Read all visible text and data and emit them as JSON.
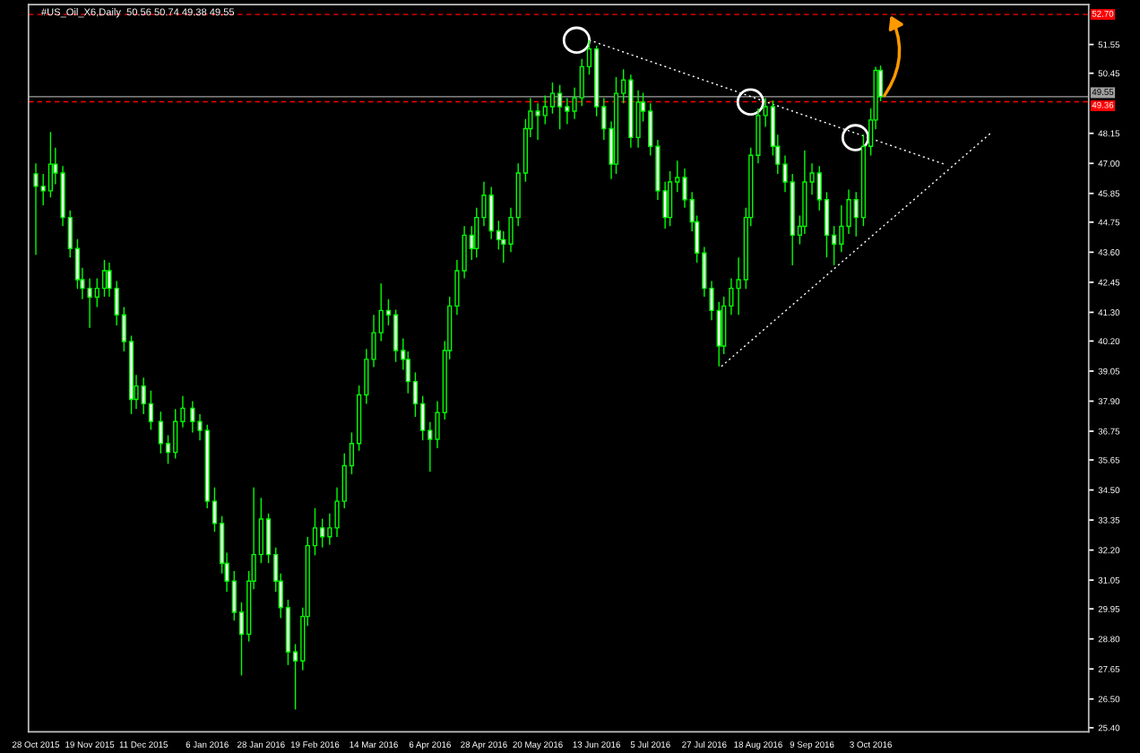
{
  "chart_data": {
    "type": "candlestick",
    "title": "#US_Oil_X6,Daily  50.56 50.74 49.38 49.55",
    "color": "#00ff00",
    "x": [
      "2015-10-28",
      "2015-10-31",
      "2015-11-03",
      "2015-11-05",
      "2015-11-08",
      "2015-11-11",
      "2015-11-14",
      "2015-11-16",
      "2015-11-19",
      "2015-11-22",
      "2015-11-25",
      "2015-11-27",
      "2015-11-30",
      "2015-12-03",
      "2015-12-06",
      "2015-12-08",
      "2015-12-11",
      "2015-12-14",
      "2015-12-18",
      "2015-12-21",
      "2015-12-24",
      "2015-12-27",
      "2015-12-31",
      "2016-01-03",
      "2016-01-06",
      "2016-01-09",
      "2016-01-12",
      "2016-01-14",
      "2016-01-17",
      "2016-01-20",
      "2016-01-23",
      "2016-01-25",
      "2016-01-28",
      "2016-01-31",
      "2016-02-03",
      "2016-02-05",
      "2016-02-08",
      "2016-02-11",
      "2016-02-14",
      "2016-02-16",
      "2016-02-19",
      "2016-02-22",
      "2016-02-25",
      "2016-02-28",
      "2016-03-02",
      "2016-03-05",
      "2016-03-08",
      "2016-03-11",
      "2016-03-14",
      "2016-03-17",
      "2016-03-20",
      "2016-03-23",
      "2016-03-26",
      "2016-03-28",
      "2016-03-31",
      "2016-04-03",
      "2016-04-06",
      "2016-04-09",
      "2016-04-12",
      "2016-04-14",
      "2016-04-17",
      "2016-04-20",
      "2016-04-23",
      "2016-04-25",
      "2016-04-28",
      "2016-05-01",
      "2016-05-04",
      "2016-05-06",
      "2016-05-09",
      "2016-05-12",
      "2016-05-15",
      "2016-05-17",
      "2016-05-20",
      "2016-05-23",
      "2016-05-26",
      "2016-05-29",
      "2016-06-01",
      "2016-06-04",
      "2016-06-07",
      "2016-06-10",
      "2016-06-13",
      "2016-06-16",
      "2016-06-19",
      "2016-06-21",
      "2016-06-24",
      "2016-06-27",
      "2016-06-30",
      "2016-07-02",
      "2016-07-05",
      "2016-07-08",
      "2016-07-11",
      "2016-07-13",
      "2016-07-16",
      "2016-07-19",
      "2016-07-22",
      "2016-07-24",
      "2016-07-27",
      "2016-07-30",
      "2016-08-02",
      "2016-08-04",
      "2016-08-07",
      "2016-08-10",
      "2016-08-13",
      "2016-08-15",
      "2016-08-18",
      "2016-08-21",
      "2016-08-24",
      "2016-08-26",
      "2016-08-29",
      "2016-09-01",
      "2016-09-04",
      "2016-09-06",
      "2016-09-09",
      "2016-09-12",
      "2016-09-15",
      "2016-09-18",
      "2016-09-21",
      "2016-09-24",
      "2016-09-27",
      "2016-09-30",
      "2016-10-03",
      "2016-10-05",
      "2016-10-07"
    ],
    "ohlc": [
      [
        46.6,
        47.0,
        43.5,
        46.12
      ],
      [
        46.12,
        46.6,
        45.4,
        45.95
      ],
      [
        45.95,
        48.2,
        45.7,
        46.97
      ],
      [
        46.97,
        47.6,
        46.2,
        46.63
      ],
      [
        46.63,
        46.9,
        44.6,
        44.93
      ],
      [
        44.93,
        45.2,
        43.4,
        43.74
      ],
      [
        43.74,
        44.1,
        42.2,
        42.55
      ],
      [
        42.55,
        43.0,
        41.8,
        42.22
      ],
      [
        42.22,
        42.6,
        40.7,
        41.88
      ],
      [
        41.88,
        42.6,
        41.5,
        42.22
      ],
      [
        42.22,
        43.3,
        41.9,
        42.89
      ],
      [
        42.89,
        43.2,
        41.9,
        42.22
      ],
      [
        42.22,
        42.5,
        40.8,
        41.2
      ],
      [
        41.2,
        41.5,
        39.8,
        40.18
      ],
      [
        40.18,
        40.4,
        37.4,
        37.97
      ],
      [
        37.97,
        38.9,
        37.6,
        38.48
      ],
      [
        38.48,
        38.8,
        37.4,
        37.8
      ],
      [
        37.8,
        38.3,
        36.8,
        37.12
      ],
      [
        37.12,
        37.5,
        35.9,
        36.28
      ],
      [
        36.28,
        36.6,
        35.5,
        35.94
      ],
      [
        35.94,
        37.6,
        35.7,
        37.12
      ],
      [
        37.12,
        38.1,
        36.9,
        37.63
      ],
      [
        37.63,
        37.9,
        36.7,
        37.12
      ],
      [
        37.12,
        37.4,
        36.4,
        36.78
      ],
      [
        36.78,
        37.0,
        33.8,
        34.07
      ],
      [
        34.07,
        34.6,
        32.9,
        33.22
      ],
      [
        33.22,
        33.5,
        31.3,
        31.69
      ],
      [
        31.69,
        32.1,
        30.6,
        31.01
      ],
      [
        31.01,
        31.4,
        29.5,
        29.82
      ],
      [
        29.82,
        30.2,
        27.4,
        28.98
      ],
      [
        28.98,
        31.4,
        28.7,
        31.01
      ],
      [
        31.01,
        34.6,
        30.7,
        32.03
      ],
      [
        32.03,
        34.2,
        31.7,
        33.39
      ],
      [
        33.39,
        33.6,
        31.7,
        32.03
      ],
      [
        32.03,
        32.3,
        30.6,
        31.01
      ],
      [
        31.01,
        31.3,
        29.6,
        30.0
      ],
      [
        30.0,
        30.3,
        27.8,
        28.3
      ],
      [
        28.3,
        28.6,
        26.1,
        27.96
      ],
      [
        27.96,
        30.0,
        27.6,
        29.66
      ],
      [
        29.66,
        32.7,
        29.3,
        32.37
      ],
      [
        32.37,
        33.8,
        32.0,
        33.05
      ],
      [
        33.05,
        33.4,
        32.3,
        32.71
      ],
      [
        32.71,
        33.6,
        32.4,
        33.05
      ],
      [
        33.05,
        34.6,
        32.7,
        34.07
      ],
      [
        34.07,
        35.9,
        33.8,
        35.43
      ],
      [
        35.43,
        36.7,
        35.1,
        36.28
      ],
      [
        36.28,
        38.5,
        36.0,
        38.14
      ],
      [
        38.14,
        39.9,
        37.8,
        39.5
      ],
      [
        39.5,
        41.2,
        39.2,
        40.52
      ],
      [
        40.52,
        42.4,
        40.2,
        41.37
      ],
      [
        41.37,
        41.8,
        40.8,
        41.2
      ],
      [
        41.2,
        41.4,
        39.4,
        39.84
      ],
      [
        39.84,
        40.3,
        39.1,
        39.5
      ],
      [
        39.5,
        39.8,
        38.2,
        38.65
      ],
      [
        38.65,
        39.0,
        37.3,
        37.8
      ],
      [
        37.8,
        38.1,
        36.4,
        36.78
      ],
      [
        36.78,
        37.1,
        35.2,
        36.44
      ],
      [
        36.44,
        37.9,
        36.1,
        37.46
      ],
      [
        37.46,
        40.2,
        37.2,
        39.84
      ],
      [
        39.84,
        41.9,
        39.5,
        41.54
      ],
      [
        41.54,
        43.3,
        41.2,
        42.89
      ],
      [
        42.89,
        44.6,
        42.6,
        44.25
      ],
      [
        44.25,
        44.6,
        43.3,
        43.74
      ],
      [
        43.74,
        45.3,
        43.4,
        44.93
      ],
      [
        44.93,
        46.3,
        44.6,
        45.78
      ],
      [
        45.78,
        46.1,
        44.1,
        44.42
      ],
      [
        44.42,
        44.8,
        43.7,
        44.08
      ],
      [
        44.08,
        44.4,
        43.2,
        43.91
      ],
      [
        43.91,
        45.3,
        43.6,
        44.93
      ],
      [
        44.93,
        47.0,
        44.6,
        46.63
      ],
      [
        46.63,
        48.7,
        46.3,
        48.33
      ],
      [
        48.33,
        49.5,
        48.0,
        49.0
      ],
      [
        49.0,
        49.3,
        47.9,
        48.83
      ],
      [
        48.83,
        49.6,
        48.5,
        49.17
      ],
      [
        49.17,
        50.1,
        48.9,
        49.68
      ],
      [
        49.68,
        50.0,
        48.3,
        49.17
      ],
      [
        49.17,
        49.5,
        48.5,
        49.0
      ],
      [
        49.0,
        49.9,
        48.7,
        49.51
      ],
      [
        49.51,
        51.0,
        49.2,
        50.7
      ],
      [
        50.7,
        51.72,
        50.4,
        51.38
      ],
      [
        51.38,
        51.5,
        48.8,
        49.17
      ],
      [
        49.17,
        49.5,
        47.9,
        48.33
      ],
      [
        48.33,
        48.6,
        46.4,
        46.97
      ],
      [
        46.97,
        50.3,
        46.6,
        49.68
      ],
      [
        49.68,
        50.6,
        49.3,
        50.19
      ],
      [
        50.19,
        50.4,
        47.6,
        47.99
      ],
      [
        47.99,
        49.8,
        47.6,
        49.34
      ],
      [
        49.34,
        49.7,
        48.6,
        49.0
      ],
      [
        49.0,
        49.3,
        47.3,
        47.65
      ],
      [
        47.65,
        47.9,
        45.6,
        45.95
      ],
      [
        45.95,
        46.3,
        44.5,
        44.93
      ],
      [
        44.93,
        46.7,
        44.6,
        46.29
      ],
      [
        46.29,
        47.1,
        45.9,
        46.46
      ],
      [
        46.46,
        46.8,
        45.3,
        45.61
      ],
      [
        45.61,
        45.9,
        44.4,
        44.76
      ],
      [
        44.76,
        45.0,
        43.2,
        43.57
      ],
      [
        43.57,
        43.8,
        41.9,
        42.22
      ],
      [
        42.22,
        42.5,
        41.0,
        41.37
      ],
      [
        41.37,
        41.7,
        39.23,
        40.01
      ],
      [
        40.01,
        41.9,
        39.7,
        41.54
      ],
      [
        41.54,
        42.6,
        41.2,
        42.22
      ],
      [
        42.22,
        43.4,
        41.2,
        42.55
      ],
      [
        42.55,
        45.3,
        42.2,
        44.93
      ],
      [
        44.93,
        47.6,
        44.6,
        47.31
      ],
      [
        47.31,
        49.1,
        47.0,
        48.83
      ],
      [
        48.83,
        49.5,
        48.4,
        49.17
      ],
      [
        49.17,
        49.4,
        47.3,
        47.65
      ],
      [
        47.65,
        48.1,
        46.6,
        46.97
      ],
      [
        46.97,
        47.3,
        45.9,
        46.29
      ],
      [
        46.29,
        46.6,
        43.1,
        44.25
      ],
      [
        44.25,
        45.0,
        43.9,
        44.59
      ],
      [
        44.59,
        47.5,
        44.3,
        46.29
      ],
      [
        46.29,
        47.0,
        45.8,
        46.63
      ],
      [
        46.63,
        46.9,
        45.2,
        45.61
      ],
      [
        45.61,
        45.9,
        43.4,
        44.25
      ],
      [
        44.25,
        44.6,
        43.1,
        43.91
      ],
      [
        43.91,
        45.4,
        43.6,
        44.59
      ],
      [
        44.59,
        46.0,
        44.3,
        45.61
      ],
      [
        45.61,
        45.9,
        44.2,
        44.93
      ],
      [
        44.93,
        48.1,
        44.6,
        47.65
      ],
      [
        47.65,
        49.1,
        47.3,
        48.66
      ],
      [
        48.66,
        50.7,
        48.3,
        50.56
      ],
      [
        50.56,
        50.74,
        49.38,
        49.55
      ]
    ],
    "series": [
      {
        "type": "line",
        "x": [
          "2016-06-10",
          "2016-11-02"
        ],
        "values": [
          51.72,
          46.97
        ],
        "color": "#ffffff",
        "line_style": "dotted"
      },
      {
        "type": "line",
        "x": [
          "2016-08-03",
          "2016-11-21"
        ],
        "values": [
          39.23,
          48.16
        ],
        "color": "#ffffff",
        "line_style": "dotted"
      }
    ],
    "ref_lines": [
      {
        "axis": "y",
        "value": 52.7,
        "label": "52.70",
        "color": "#ff0000",
        "line_style": "dashed"
      },
      {
        "axis": "y",
        "value": 49.55,
        "label": "49.55",
        "color": "#a0a0a0",
        "line_style": "solid"
      },
      {
        "axis": "y",
        "value": 49.36,
        "label": "49.36",
        "color": "#ff0000",
        "line_style": "dashed"
      }
    ],
    "xlim": [
      "2015-10-25",
      "2016-12-31"
    ],
    "xticks": [
      {
        "value": "2015-10-28",
        "label": "28 Oct 2015"
      },
      {
        "value": "2015-11-19",
        "label": "19 Nov 2015"
      },
      {
        "value": "2015-12-11",
        "label": "11 Dec 2015"
      },
      {
        "value": "2016-01-06",
        "label": "6 Jan 2016"
      },
      {
        "value": "2016-01-28",
        "label": "28 Jan 2016"
      },
      {
        "value": "2016-02-19",
        "label": "19 Feb 2016"
      },
      {
        "value": "2016-03-14",
        "label": "14 Mar 2016"
      },
      {
        "value": "2016-04-06",
        "label": "6 Apr 2016"
      },
      {
        "value": "2016-04-28",
        "label": "28 Apr 2016"
      },
      {
        "value": "2016-05-20",
        "label": "20 May 2016"
      },
      {
        "value": "2016-06-13",
        "label": "13 Jun 2016"
      },
      {
        "value": "2016-07-05",
        "label": "5 Jul 2016"
      },
      {
        "value": "2016-07-27",
        "label": "27 Jul 2016"
      },
      {
        "value": "2016-08-18",
        "label": "18 Aug 2016"
      },
      {
        "value": "2016-09-09",
        "label": "9 Sep 2016"
      },
      {
        "value": "2016-10-03",
        "label": "3 Oct 2016"
      }
    ],
    "ylim": [
      25.24,
      53.08
    ],
    "yticks": [
      {
        "value": 25.4,
        "label": "25.40"
      },
      {
        "value": 26.5,
        "label": "26.50"
      },
      {
        "value": 27.65,
        "label": "27.65"
      },
      {
        "value": 28.8,
        "label": "28.80"
      },
      {
        "value": 29.95,
        "label": "29.95"
      },
      {
        "value": 31.05,
        "label": "31.05"
      },
      {
        "value": 32.2,
        "label": "32.20"
      },
      {
        "value": 33.35,
        "label": "33.35"
      },
      {
        "value": 34.5,
        "label": "34.50"
      },
      {
        "value": 35.65,
        "label": "35.65"
      },
      {
        "value": 36.75,
        "label": "36.75"
      },
      {
        "value": 37.9,
        "label": "37.90"
      },
      {
        "value": 39.05,
        "label": "39.05"
      },
      {
        "value": 40.2,
        "label": "40.20"
      },
      {
        "value": 41.3,
        "label": "41.30"
      },
      {
        "value": 42.45,
        "label": "42.45"
      },
      {
        "value": 43.6,
        "label": "43.60"
      },
      {
        "value": 44.75,
        "label": "44.75"
      },
      {
        "value": 45.85,
        "label": "45.85"
      },
      {
        "value": 47.0,
        "label": "47.00"
      },
      {
        "value": 48.15,
        "label": "48.15"
      },
      {
        "value": 50.45,
        "label": "50.45"
      },
      {
        "value": 51.55,
        "label": "51.55"
      }
    ],
    "grid": false,
    "legend": false
  }
}
